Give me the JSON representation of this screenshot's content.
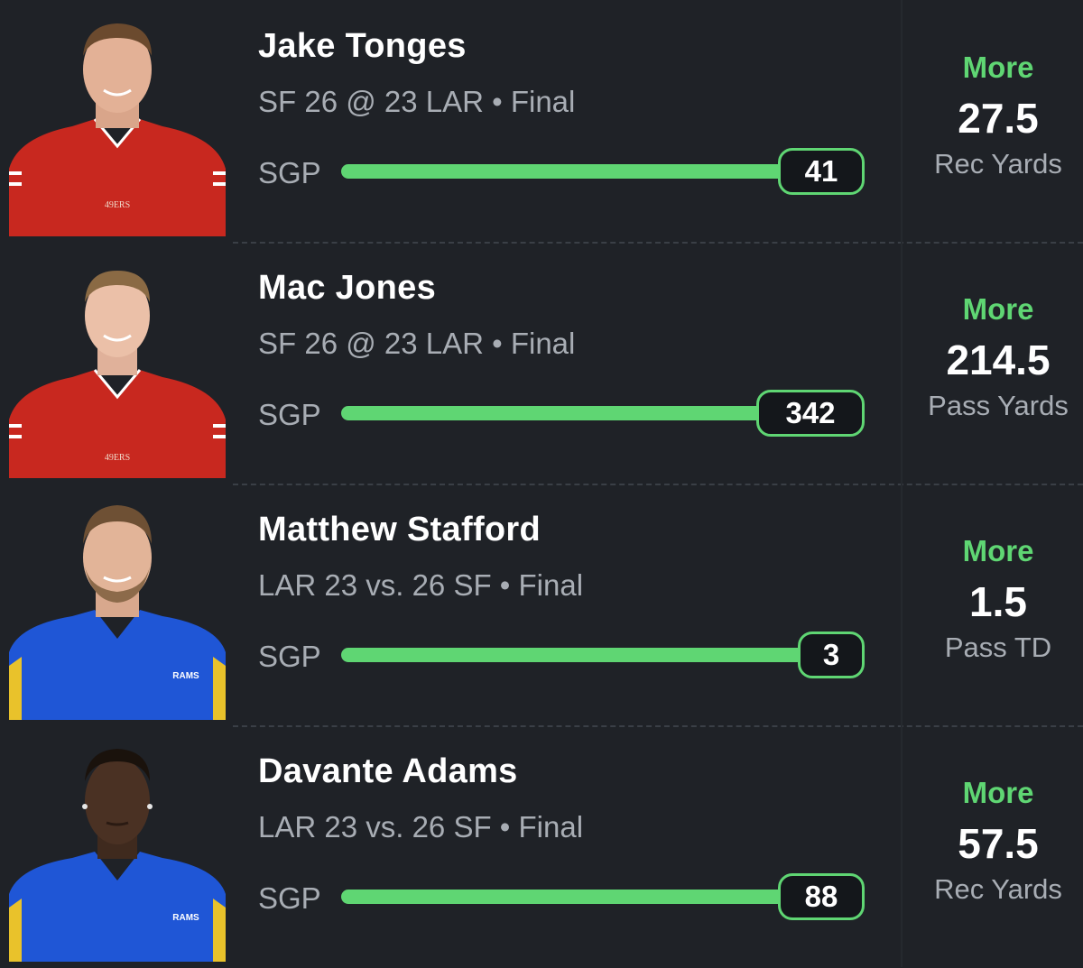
{
  "rows": [
    {
      "name": "Jake Tonges",
      "game": "SF 26 @ 23 LAR • Final",
      "sgp_label": "SGP",
      "result": "41",
      "pick_direction": "More",
      "pick_line": "27.5",
      "pick_stat": "Rec Yards",
      "jersey_color": "#c8281f",
      "team": "49ERS"
    },
    {
      "name": "Mac Jones",
      "game": "SF 26 @ 23 LAR • Final",
      "sgp_label": "SGP",
      "result": "342",
      "pick_direction": "More",
      "pick_line": "214.5",
      "pick_stat": "Pass Yards",
      "jersey_color": "#c8281f",
      "team": "49ERS"
    },
    {
      "name": "Matthew Stafford",
      "game": "LAR 23 vs. 26 SF • Final",
      "sgp_label": "SGP",
      "result": "3",
      "pick_direction": "More",
      "pick_line": "1.5",
      "pick_stat": "Pass TD",
      "jersey_color": "#1f56d6",
      "team": "RAMS"
    },
    {
      "name": "Davante Adams",
      "game": "LAR 23 vs. 26 SF • Final",
      "sgp_label": "SGP",
      "result": "88",
      "pick_direction": "More",
      "pick_line": "57.5",
      "pick_stat": "Rec Yards",
      "jersey_color": "#1f56d6",
      "team": "RAMS"
    }
  ],
  "colors": {
    "accent": "#5fd673",
    "background": "#1f2227",
    "muted_text": "#a8adb4"
  }
}
